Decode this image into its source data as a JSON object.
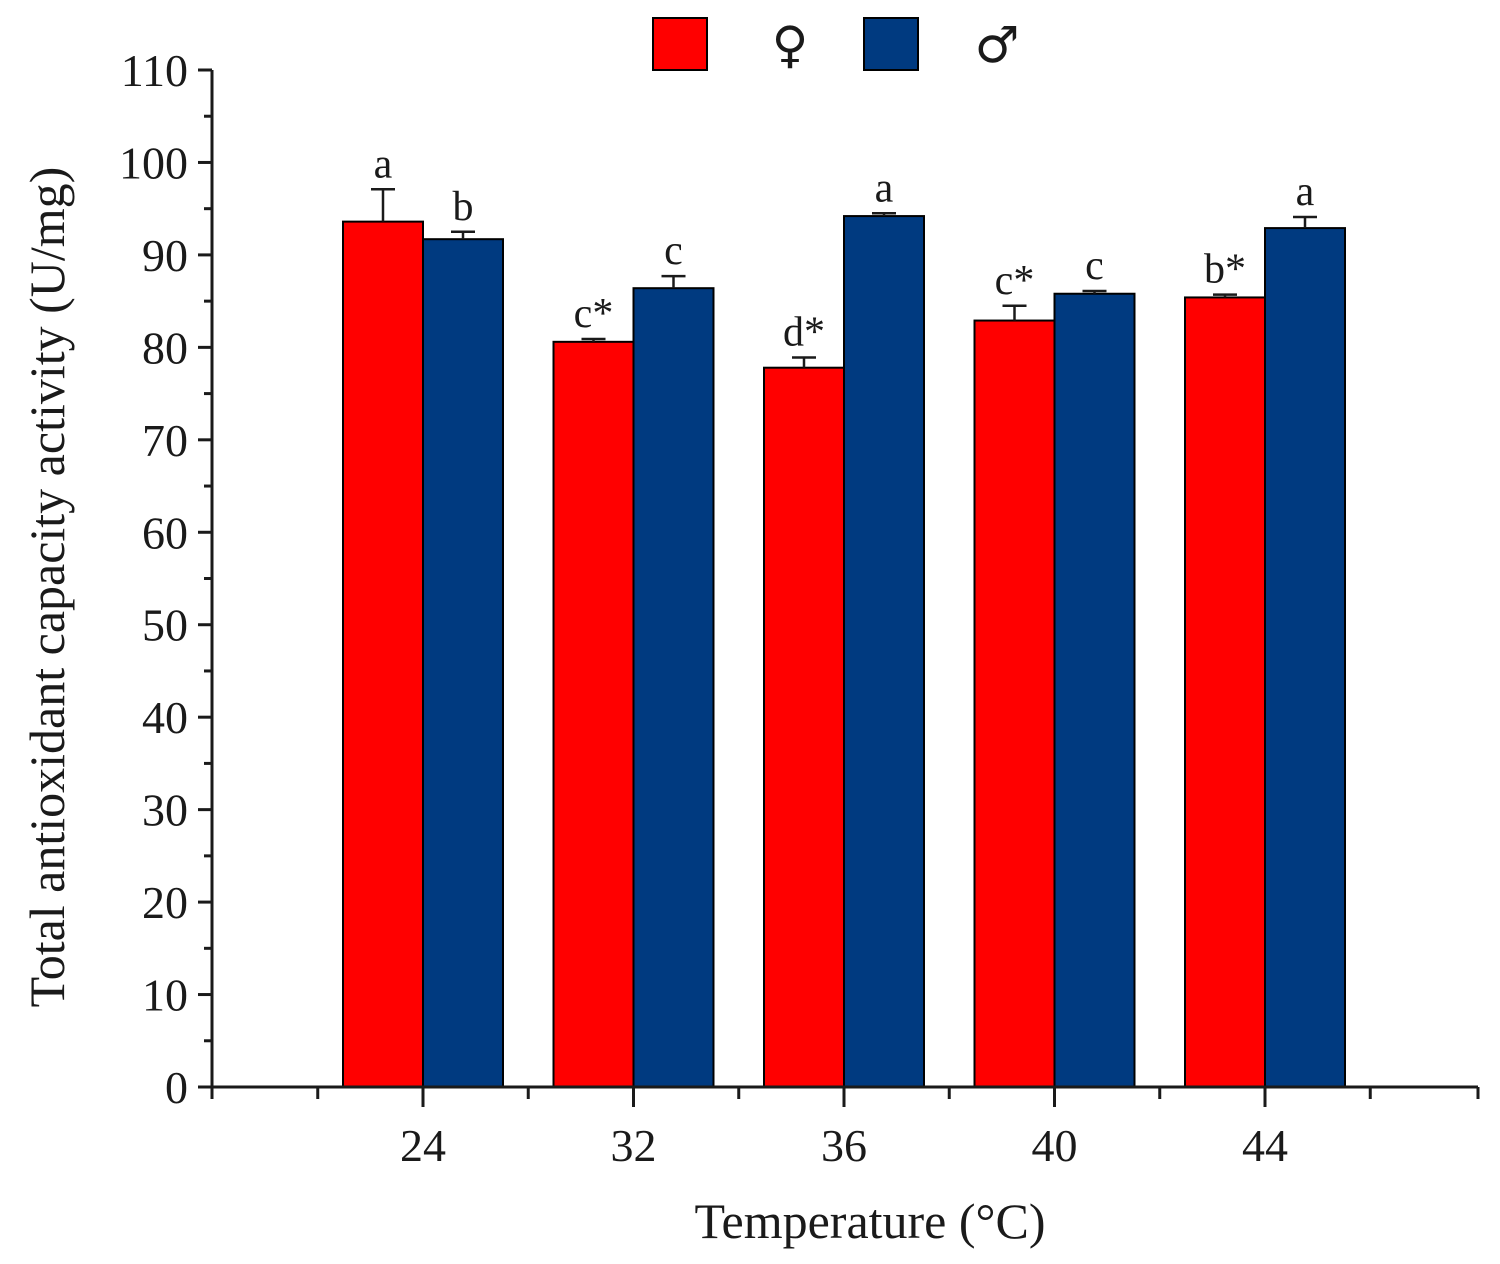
{
  "chart_data": {
    "type": "bar",
    "title": "",
    "xlabel": "Temperature (°C)",
    "ylabel": "Total antioxidant capacity activity (U/mg)",
    "categories": [
      "24",
      "32",
      "36",
      "40",
      "44"
    ],
    "ylim": [
      0,
      110
    ],
    "yticks": [
      0,
      10,
      20,
      30,
      40,
      50,
      60,
      70,
      80,
      90,
      100,
      110
    ],
    "ytick_labels": [
      "0",
      "10",
      "20",
      "30",
      "40",
      "50",
      "60",
      "70",
      "80",
      "90",
      "100",
      "110"
    ],
    "grid": false,
    "legend_position": "top-center",
    "series": [
      {
        "name": "♀",
        "color": "#ff0000",
        "values": [
          93.6,
          80.6,
          77.8,
          82.9,
          85.4
        ],
        "errors": [
          3.5,
          0.3,
          1.1,
          1.6,
          0.3
        ],
        "labels": [
          "a",
          "c*",
          "d*",
          "c*",
          "b*"
        ]
      },
      {
        "name": "♂",
        "color": "#003a80",
        "values": [
          91.7,
          86.4,
          94.2,
          85.8,
          92.9
        ],
        "errors": [
          0.8,
          1.3,
          0.3,
          0.3,
          1.2
        ],
        "labels": [
          "b",
          "c",
          "a",
          "c",
          "a"
        ]
      }
    ]
  }
}
